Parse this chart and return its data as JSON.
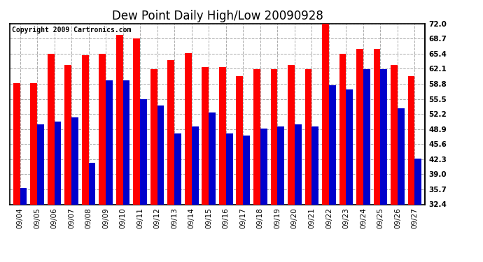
{
  "title": "Dew Point Daily High/Low 20090928",
  "copyright": "Copyright 2009 Cartronics.com",
  "dates": [
    "09/04",
    "09/05",
    "09/06",
    "09/07",
    "09/08",
    "09/09",
    "09/10",
    "09/11",
    "09/12",
    "09/13",
    "09/14",
    "09/15",
    "09/16",
    "09/17",
    "09/18",
    "09/19",
    "09/20",
    "09/21",
    "09/22",
    "09/23",
    "09/24",
    "09/25",
    "09/26",
    "09/27"
  ],
  "highs": [
    59.0,
    59.0,
    65.4,
    63.0,
    65.0,
    65.4,
    69.5,
    68.7,
    62.0,
    64.0,
    65.5,
    62.5,
    62.5,
    60.5,
    62.0,
    62.0,
    63.0,
    62.0,
    72.5,
    65.4,
    66.5,
    66.5,
    63.0,
    60.5
  ],
  "lows": [
    36.0,
    50.0,
    50.5,
    51.5,
    41.5,
    59.5,
    59.5,
    55.5,
    54.0,
    48.0,
    49.5,
    52.5,
    48.0,
    47.5,
    49.0,
    49.5,
    50.0,
    49.5,
    58.5,
    57.5,
    62.0,
    62.0,
    53.5,
    42.5
  ],
  "high_color": "#ff0000",
  "low_color": "#0000cc",
  "bg_color": "#ffffff",
  "grid_color": "#aaaaaa",
  "ymin": 32.4,
  "ymax": 72.0,
  "ytick_values": [
    32.4,
    35.7,
    39.0,
    42.3,
    45.6,
    48.9,
    52.2,
    55.5,
    58.8,
    62.1,
    65.4,
    68.7,
    72.0
  ],
  "ytick_labels": [
    "32.4",
    "35.7",
    "39.0",
    "42.3",
    "45.6",
    "48.9",
    "52.2",
    "55.5",
    "58.8",
    "62.1",
    "65.4",
    "68.7",
    "72.0"
  ],
  "title_fontsize": 12,
  "copyright_fontsize": 7,
  "tick_fontsize": 7.5,
  "bar_width": 0.4,
  "dpi": 100,
  "figsize": [
    6.9,
    3.75
  ]
}
